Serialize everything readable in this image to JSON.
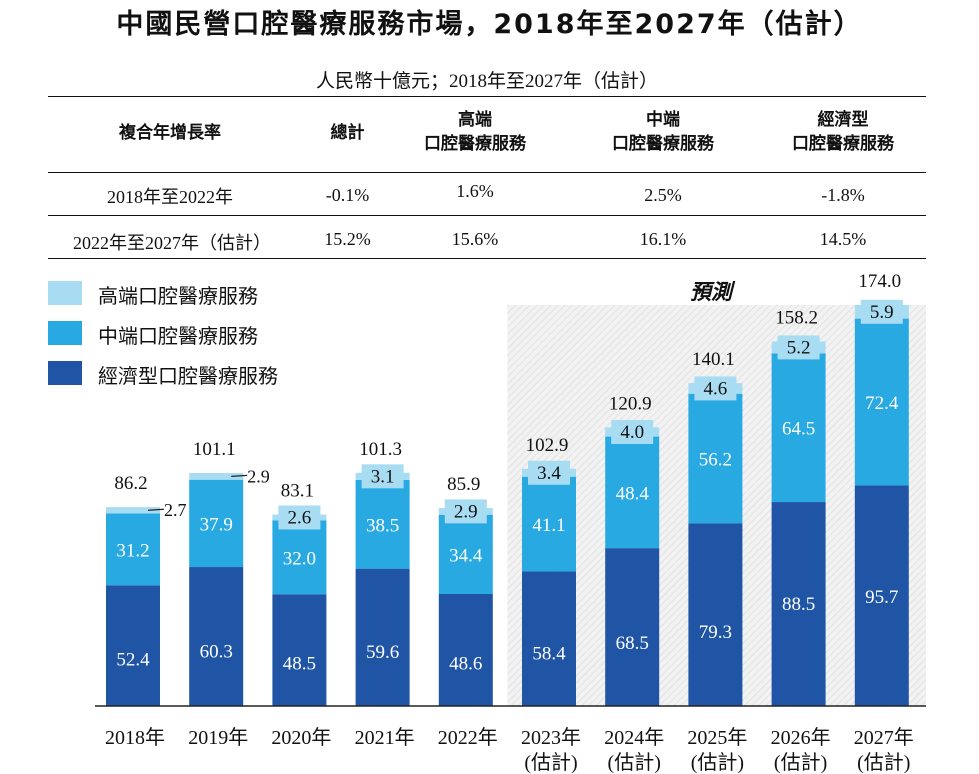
{
  "title": "中國民營口腔醫療服務市場，2018年至2027年（估計）",
  "unit_line": "人民幣十億元；2018年至2027年（估計）",
  "cagr_table": {
    "headers": [
      "複合年增長率",
      "總計",
      "高端\n口腔醫療服務",
      "中端\n口腔醫療服務",
      "經濟型\n口腔醫療服務"
    ],
    "rows": [
      {
        "period": "2018年至2022年",
        "total": "-0.1%",
        "high": "1.6%",
        "mid": "2.5%",
        "economy": "-1.8%"
      },
      {
        "period": "2022年至2027年（估計）",
        "total": "15.2%",
        "high": "15.6%",
        "mid": "16.1%",
        "economy": "14.5%"
      }
    ]
  },
  "forecast_label": "預測",
  "colors": {
    "high": "#a8dcf2",
    "mid": "#29a9e1",
    "economy": "#2055a5",
    "forecast_bg": "#f1f1f1"
  },
  "chart_data": {
    "type": "bar",
    "stacked": true,
    "categories": [
      "2018年",
      "2019年",
      "2020年",
      "2021年",
      "2022年",
      "2023年\n(估計)",
      "2024年\n(估計)",
      "2025年\n(估計)",
      "2026年\n(估計)",
      "2027年\n(估計)"
    ],
    "series": [
      {
        "name": "經濟型口腔醫療服務",
        "key": "economy",
        "values": [
          52.4,
          60.3,
          48.5,
          59.6,
          48.6,
          58.4,
          68.5,
          79.3,
          88.5,
          95.7
        ]
      },
      {
        "name": "中端口腔醫療服務",
        "key": "mid",
        "values": [
          31.2,
          37.9,
          32.0,
          38.5,
          34.4,
          41.1,
          48.4,
          56.2,
          64.5,
          72.4
        ]
      },
      {
        "name": "高端口腔醫療服務",
        "key": "high",
        "values": [
          2.7,
          2.9,
          2.6,
          3.1,
          2.9,
          3.4,
          4.0,
          4.6,
          5.2,
          5.9
        ]
      }
    ],
    "totals": [
      "86.2",
      "101.1",
      "83.1",
      "101.3",
      "85.9",
      "102.9",
      "120.9",
      "140.1",
      "158.2",
      "174.0"
    ],
    "value_labels": {
      "economy": [
        "52.4",
        "60.3",
        "48.5",
        "59.6",
        "48.6",
        "58.4",
        "68.5",
        "79.3",
        "88.5",
        "95.7"
      ],
      "mid": [
        "31.2",
        "37.9",
        "32.0",
        "38.5",
        "34.4",
        "41.1",
        "48.4",
        "56.2",
        "64.5",
        "72.4"
      ],
      "high": [
        "2.7",
        "2.9",
        "2.6",
        "3.1",
        "2.9",
        "3.4",
        "4.0",
        "4.6",
        "5.2",
        "5.9"
      ]
    },
    "outside_high_labels": [
      0,
      1
    ],
    "forecast_start_index": 5,
    "ylim": [
      0,
      180
    ],
    "legend": [
      "高端口腔醫療服務",
      "中端口腔醫療服務",
      "經濟型口腔醫療服務"
    ],
    "legend_position": "top-left",
    "xlabel": "",
    "ylabel": ""
  }
}
